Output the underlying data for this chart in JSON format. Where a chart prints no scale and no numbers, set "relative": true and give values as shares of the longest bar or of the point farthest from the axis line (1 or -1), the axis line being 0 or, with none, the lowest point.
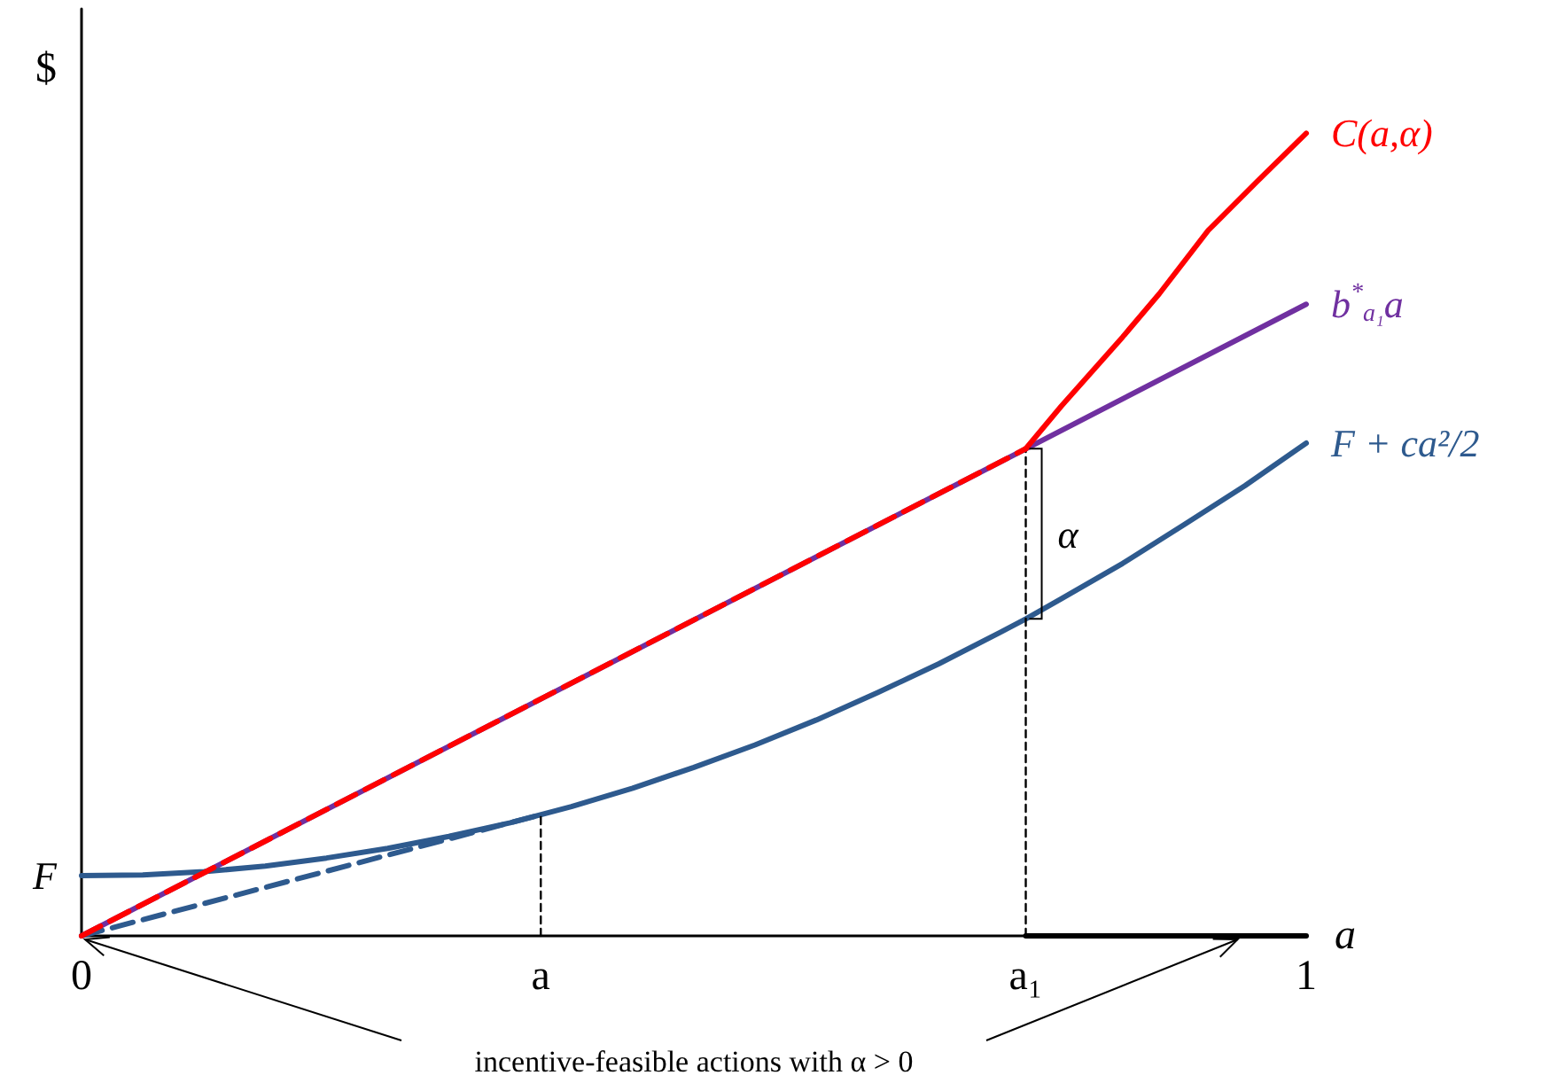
{
  "chart_data": {
    "type": "line",
    "relative": true,
    "xlabel": "a",
    "ylabel": "$",
    "xlim": [
      0,
      1
    ],
    "xticks": [
      0,
      {
        "value": 0.375,
        "label": "a"
      },
      {
        "value": 0.771,
        "label": "a₁"
      },
      1
    ],
    "grid": false,
    "legend": false,
    "marker": "none",
    "series": [
      {
        "color": "#7030a0",
        "name": "b$^{*}$$_{a₁}$a",
        "x": [
          0,
          1
        ],
        "values": [
          0,
          0.787
        ],
        "line_style": "solid"
      },
      {
        "color": "#2e5a8e",
        "name": "F + ca²/2",
        "x": [
          0,
          0.05,
          0.1,
          0.15,
          0.2,
          0.25,
          0.3,
          0.35,
          0.4,
          0.45,
          0.5,
          0.55,
          0.6,
          0.65,
          0.7,
          0.75,
          0.771,
          0.8,
          0.85,
          0.9,
          0.95,
          1
        ],
        "values": [
          0.075,
          0.076,
          0.08,
          0.087,
          0.097,
          0.109,
          0.124,
          0.141,
          0.161,
          0.184,
          0.21,
          0.238,
          0.269,
          0.303,
          0.339,
          0.378,
          0.395,
          0.42,
          0.464,
          0.512,
          0.561,
          0.614
        ],
        "line_style": "solid"
      },
      {
        "color": "#2e5a8e",
        "x": [
          0,
          0.375
        ],
        "values": [
          0,
          0.151
        ],
        "line_style": "dashed"
      },
      {
        "color": "#000000",
        "x": [
          0.375,
          0.375
        ],
        "values": [
          0,
          0.151
        ],
        "line_style": "dotted"
      },
      {
        "color": "#000000",
        "x": [
          0.771,
          0.771
        ],
        "values": [
          0,
          0.607
        ],
        "line_style": "dotted"
      },
      {
        "color": "#000000",
        "x": [
          0.771,
          1
        ],
        "values": [
          0,
          0
        ],
        "line_style": "solid"
      },
      {
        "color": "#ff0000",
        "x": [
          0,
          0.771
        ],
        "values": [
          0,
          0.607
        ],
        "line_style": "dashed"
      },
      {
        "color": "#ff0000",
        "name": "C(a,α)",
        "x": [
          0.771,
          0.8,
          0.85,
          0.88,
          0.92,
          0.96,
          1
        ],
        "values": [
          0.607,
          0.66,
          0.746,
          0.8,
          0.879,
          0.94,
          1.0
        ],
        "line_style": "solid"
      }
    ],
    "annotations": [
      {
        "text": "F",
        "x": 0,
        "y": 0.075
      },
      {
        "text": "α",
        "x": 0.771,
        "y": 0.5
      },
      "incentive-feasible actions with α > 0"
    ]
  }
}
